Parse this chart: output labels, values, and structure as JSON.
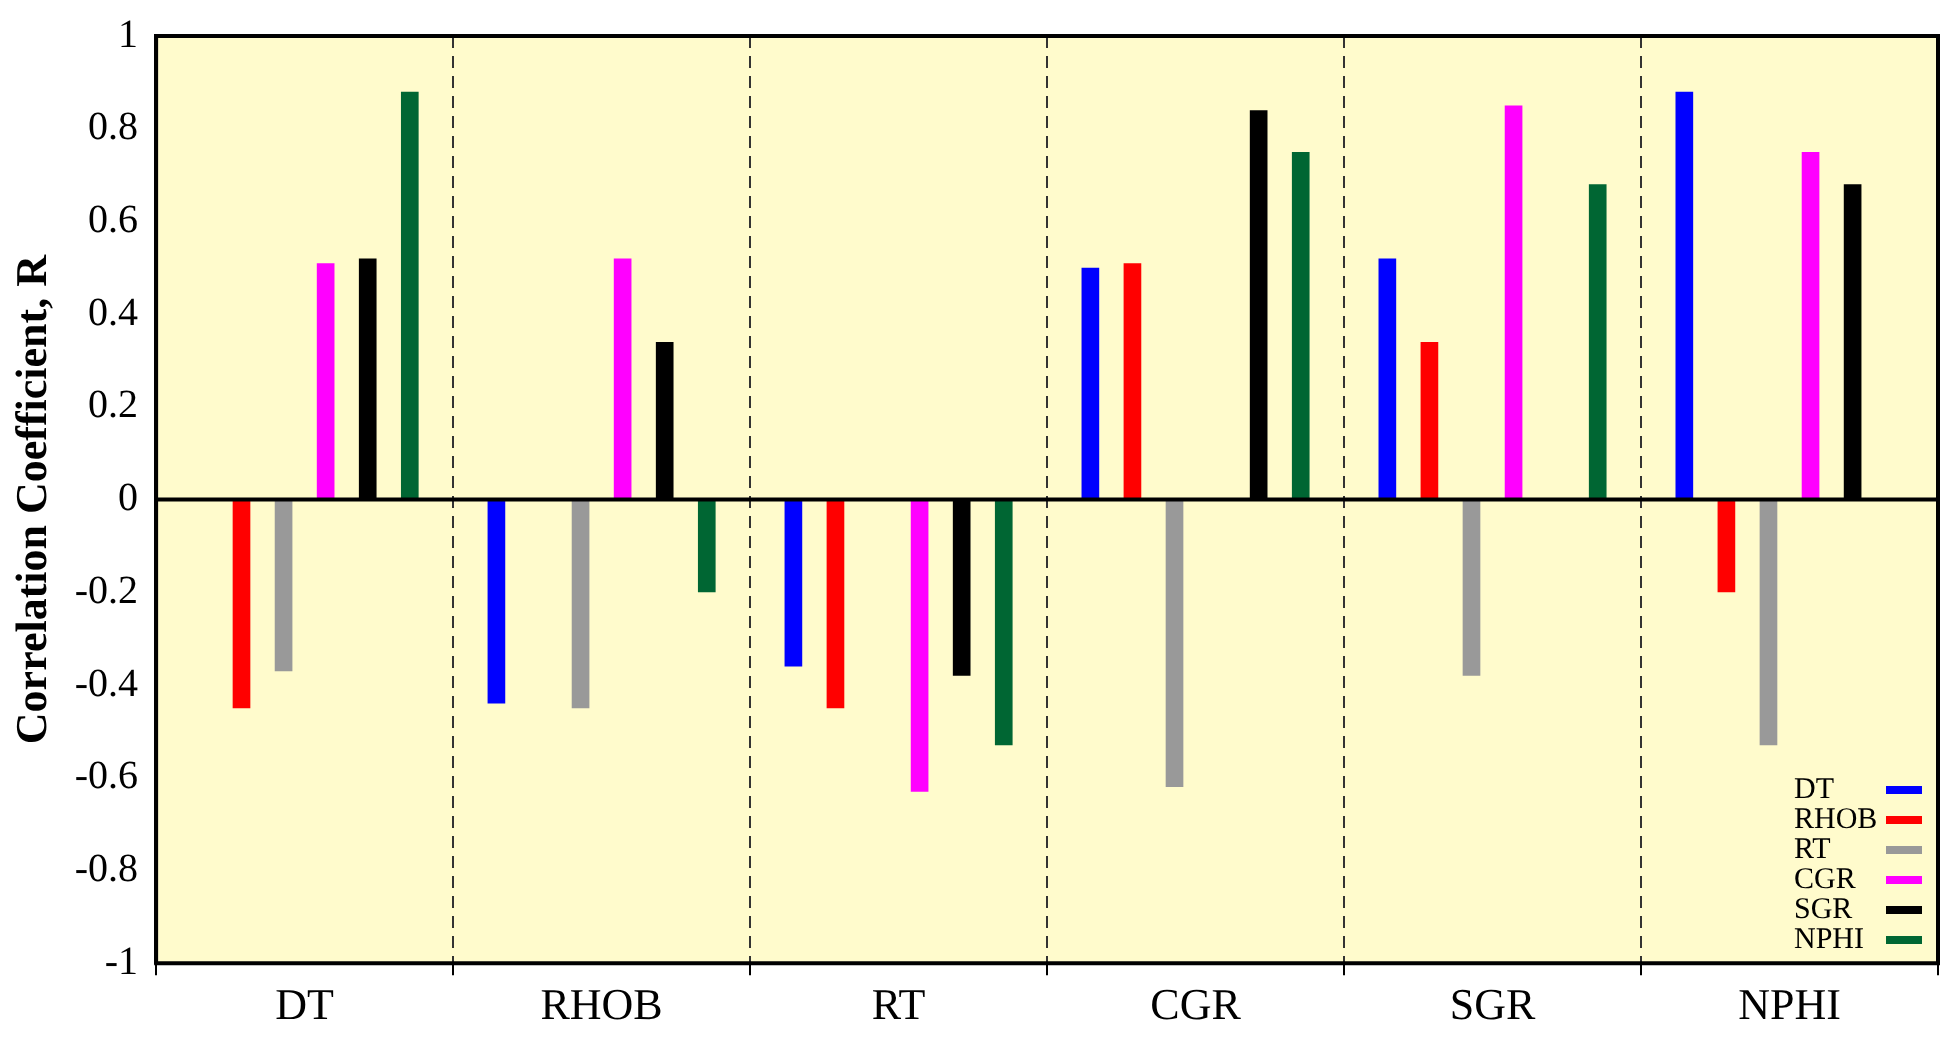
{
  "chart_data": {
    "type": "bar",
    "ylabel": "Correlation Coefficient, R",
    "categories": [
      "DT",
      "RHOB",
      "RT",
      "CGR",
      "SGR",
      "NPHI"
    ],
    "series": [
      {
        "name": "DT",
        "color": "#0000ff",
        "values": [
          null,
          -0.44,
          -0.36,
          0.5,
          0.52,
          0.88
        ]
      },
      {
        "name": "RHOB",
        "color": "#ff0000",
        "values": [
          -0.45,
          null,
          -0.45,
          0.51,
          0.34,
          -0.2
        ]
      },
      {
        "name": "RT",
        "color": "#999999",
        "values": [
          -0.37,
          -0.45,
          null,
          -0.62,
          -0.38,
          -0.53
        ]
      },
      {
        "name": "CGR",
        "color": "#ff00ff",
        "values": [
          0.51,
          0.52,
          -0.63,
          null,
          0.85,
          0.75
        ]
      },
      {
        "name": "SGR",
        "color": "#000000",
        "values": [
          0.52,
          0.34,
          -0.38,
          0.84,
          null,
          0.68
        ]
      },
      {
        "name": "NPHI",
        "color": "#006633",
        "values": [
          0.88,
          -0.2,
          -0.53,
          0.75,
          0.68,
          null
        ]
      }
    ],
    "ylim": [
      -1,
      1
    ],
    "yticks": [
      -1,
      -0.8,
      -0.6,
      -0.4,
      -0.2,
      0,
      0.2,
      0.4,
      0.6,
      0.8,
      1
    ],
    "grid": "x",
    "legend": "bottom right"
  }
}
